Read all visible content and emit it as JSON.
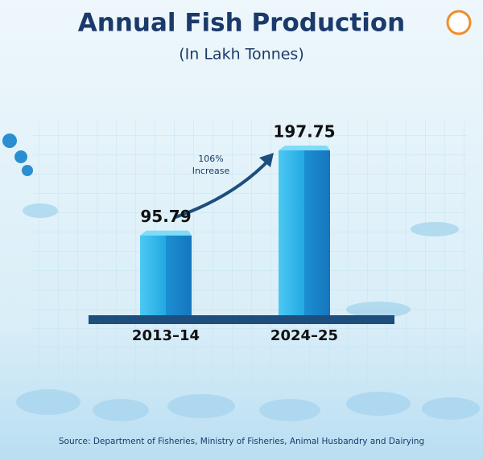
{
  "chart_data": {
    "type": "bar",
    "title": "Annual Fish Production",
    "subtitle": "(In Lakh Tonnes)",
    "categories": [
      "2013–14",
      "2024–25"
    ],
    "values": [
      95.79,
      197.75
    ],
    "color": "#22a9e2",
    "annotation": [
      "106%",
      "Increase"
    ],
    "source": "Source: Department of Fisheries, Ministry of Fisheries, Animal Husbandry and Dairying"
  }
}
